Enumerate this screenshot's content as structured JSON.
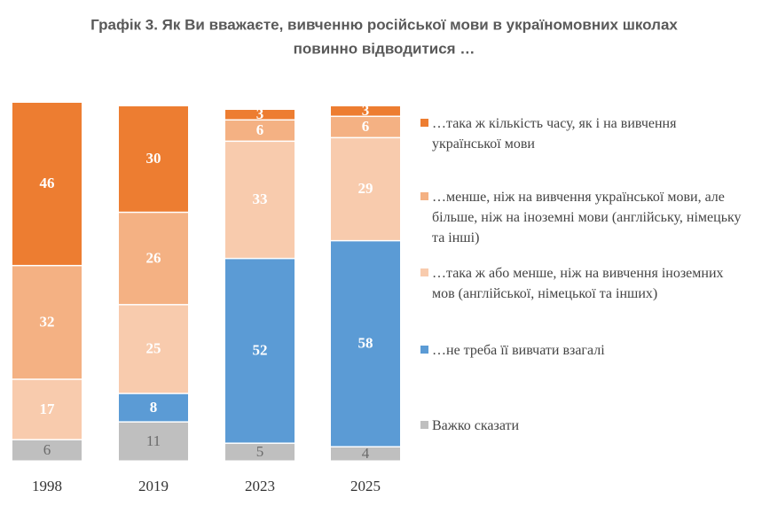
{
  "chart_data": {
    "type": "stacked-bar",
    "title": [
      "Графік 3. Як Ви вважаєте, вивченню російської мови в україномовних школах",
      "повинно відводитися …"
    ],
    "categories": [
      "1998",
      "2019",
      "2023",
      "2025"
    ],
    "series": [
      {
        "name": "Важко сказати",
        "color": "#bfbfbf",
        "values": [
          6,
          11,
          5,
          4
        ]
      },
      {
        "name": "…не треба її вивчати взагалі",
        "color": "#5b9bd5",
        "values": [
          null,
          8,
          52,
          58
        ]
      },
      {
        "name": "…така ж або менше, ніж на вивчення іноземних мов (англійської, німецької та інших)",
        "color": "#f8cbad",
        "values": [
          17,
          25,
          33,
          29
        ]
      },
      {
        "name": "…менше, ніж на вивчення української мови, але більше, ніж на іноземні мови (англійську, німецьку та інші)",
        "color": "#f4b183",
        "values": [
          32,
          26,
          6,
          6
        ]
      },
      {
        "name": "…така ж кількість часу, як і на вивчення української мови",
        "color": "#ed7d31",
        "values": [
          46,
          30,
          3,
          3
        ]
      }
    ]
  }
}
